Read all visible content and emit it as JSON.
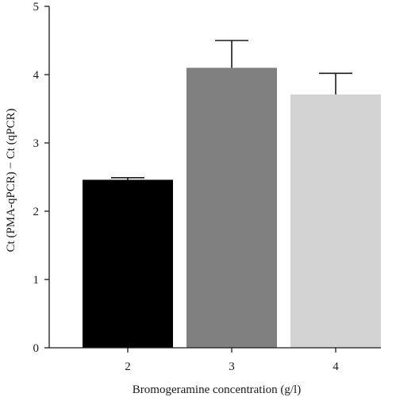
{
  "chart_data": {
    "type": "bar",
    "title": "",
    "xlabel": "Bromogeramine concentration (g/l)",
    "ylabel": "Ct (PMA-qPCR) − Ct (qPCR)",
    "categories": [
      "2",
      "3",
      "4"
    ],
    "values": [
      2.46,
      4.1,
      3.71
    ],
    "errors": [
      0.03,
      0.4,
      0.31
    ],
    "colors": [
      "#000000",
      "#808080",
      "#d3d3d3"
    ],
    "ylim": [
      0,
      5
    ],
    "yticks": [
      0,
      1,
      2,
      3,
      4,
      5
    ],
    "ytick_labels": [
      "0",
      "1",
      "2",
      "3",
      "4",
      "5"
    ],
    "grid": false,
    "legend": "none"
  }
}
